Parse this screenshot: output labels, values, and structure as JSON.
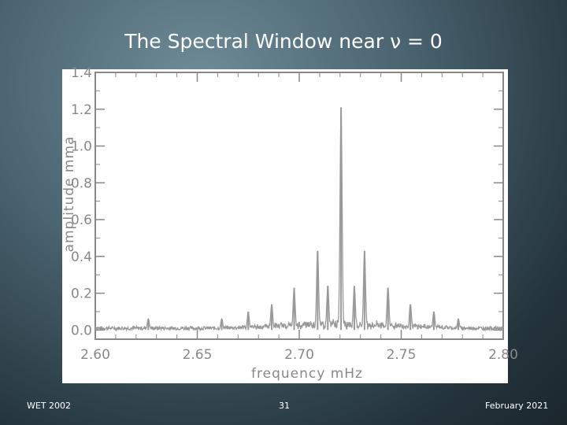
{
  "slide": {
    "title": "The Spectral Window near ν = 0",
    "footer_left": "WET 2002",
    "footer_center": "31",
    "footer_right": "February 2021"
  },
  "chart_data": {
    "type": "line",
    "xlabel": "frequency  mHz",
    "ylabel": "amplitude  mma",
    "xlim": [
      2.6,
      2.8
    ],
    "ylim": [
      -0.05,
      1.4
    ],
    "x_ticks": [
      "2.60",
      "2.65",
      "2.70",
      "2.75",
      "2.80"
    ],
    "y_ticks": [
      "0.0",
      "0.2",
      "0.4",
      "0.6",
      "0.8",
      "1.0",
      "1.2",
      "1.4"
    ],
    "grid": false,
    "colors": {
      "line": "#999999",
      "axis": "#888888",
      "panel": "#ffffff"
    },
    "series": [
      {
        "peaks": [
          {
            "x": 2.7205,
            "y": 1.21
          },
          {
            "x": 2.709,
            "y": 0.43
          },
          {
            "x": 2.732,
            "y": 0.43
          },
          {
            "x": 2.6975,
            "y": 0.23
          },
          {
            "x": 2.7435,
            "y": 0.23
          },
          {
            "x": 2.6865,
            "y": 0.14
          },
          {
            "x": 2.7545,
            "y": 0.14
          },
          {
            "x": 2.714,
            "y": 0.24
          },
          {
            "x": 2.727,
            "y": 0.24
          },
          {
            "x": 2.675,
            "y": 0.1
          },
          {
            "x": 2.766,
            "y": 0.1
          },
          {
            "x": 2.662,
            "y": 0.06
          },
          {
            "x": 2.778,
            "y": 0.06
          },
          {
            "x": 2.626,
            "y": 0.06
          }
        ],
        "noise_level": 0.02
      }
    ]
  }
}
